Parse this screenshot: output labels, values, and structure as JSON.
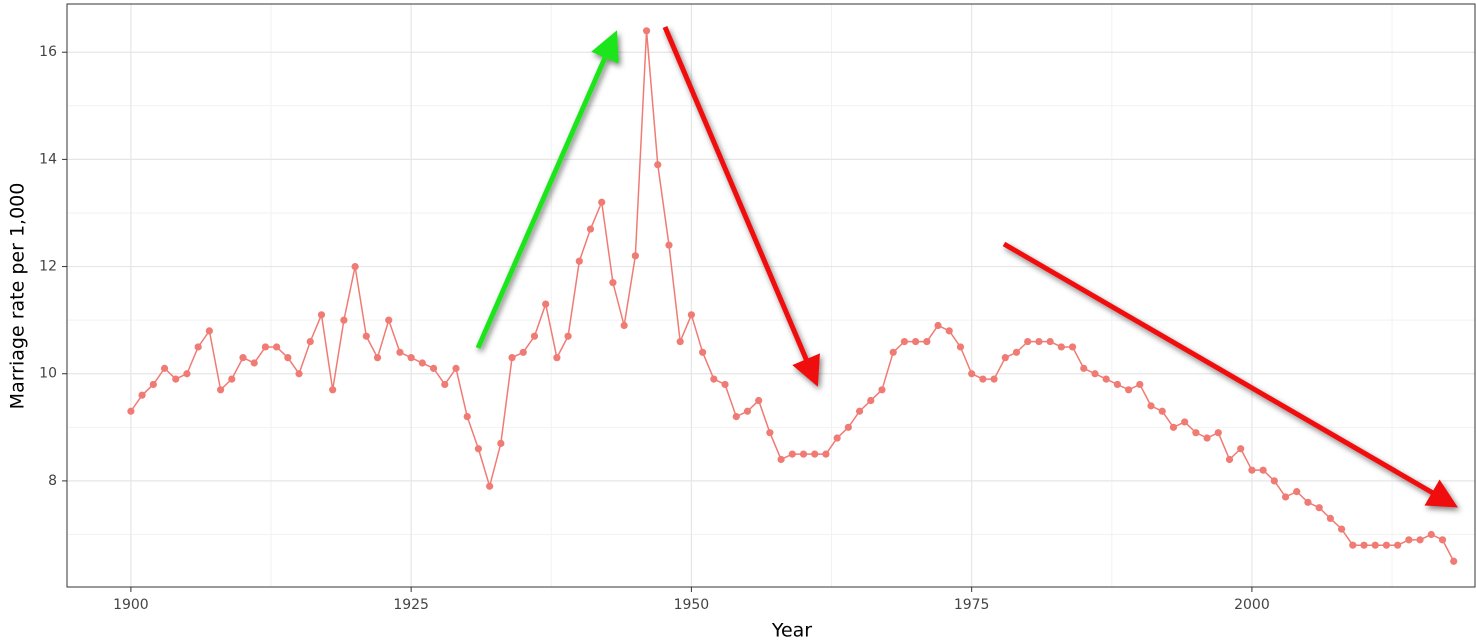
{
  "chart_data": {
    "type": "line",
    "x_label": "Year",
    "y_label": "Marriage rate per 1,000",
    "x": [
      1900,
      1901,
      1902,
      1903,
      1904,
      1905,
      1906,
      1907,
      1908,
      1909,
      1910,
      1911,
      1912,
      1913,
      1914,
      1915,
      1916,
      1917,
      1918,
      1919,
      1920,
      1921,
      1922,
      1923,
      1924,
      1925,
      1926,
      1927,
      1928,
      1929,
      1930,
      1931,
      1932,
      1933,
      1934,
      1935,
      1936,
      1937,
      1938,
      1939,
      1940,
      1941,
      1942,
      1943,
      1944,
      1945,
      1946,
      1947,
      1948,
      1949,
      1950,
      1951,
      1952,
      1953,
      1954,
      1955,
      1956,
      1957,
      1958,
      1959,
      1960,
      1961,
      1962,
      1963,
      1964,
      1965,
      1966,
      1967,
      1968,
      1969,
      1970,
      1971,
      1972,
      1973,
      1974,
      1975,
      1976,
      1977,
      1978,
      1979,
      1980,
      1981,
      1982,
      1983,
      1984,
      1985,
      1986,
      1987,
      1988,
      1989,
      1990,
      1991,
      1992,
      1993,
      1994,
      1995,
      1996,
      1997,
      1998,
      1999,
      2000,
      2001,
      2002,
      2003,
      2004,
      2005,
      2006,
      2007,
      2008,
      2009,
      2010,
      2011,
      2012,
      2013,
      2014,
      2015,
      2016,
      2017,
      2018
    ],
    "series": [
      {
        "color": "#f07b74",
        "values": [
          9.3,
          9.6,
          9.8,
          10.1,
          9.9,
          10.0,
          10.5,
          10.8,
          9.7,
          9.9,
          10.3,
          10.2,
          10.5,
          10.5,
          10.3,
          10.0,
          10.6,
          11.1,
          9.7,
          11.0,
          12.0,
          10.7,
          10.3,
          11.0,
          10.4,
          10.3,
          10.2,
          10.1,
          9.8,
          10.1,
          9.2,
          8.6,
          7.9,
          8.7,
          10.3,
          10.4,
          10.7,
          11.3,
          10.3,
          10.7,
          12.1,
          12.7,
          13.2,
          11.7,
          10.9,
          12.2,
          16.4,
          13.9,
          12.4,
          10.6,
          11.1,
          10.4,
          9.9,
          9.8,
          9.2,
          9.3,
          9.5,
          8.9,
          8.4,
          8.5,
          8.5,
          8.5,
          8.5,
          8.8,
          9.0,
          9.3,
          9.5,
          9.7,
          10.4,
          10.6,
          10.6,
          10.6,
          10.9,
          10.8,
          10.5,
          10.0,
          9.9,
          9.9,
          10.3,
          10.4,
          10.6,
          10.6,
          10.6,
          10.5,
          10.5,
          10.1,
          10.0,
          9.9,
          9.8,
          9.7,
          9.8,
          9.4,
          9.3,
          9.0,
          9.1,
          8.9,
          8.8,
          8.9,
          8.4,
          8.6,
          8.2,
          8.2,
          8.0,
          7.7,
          7.8,
          7.6,
          7.5,
          7.3,
          7.1,
          6.8,
          6.8,
          6.8,
          6.8,
          6.8,
          6.9,
          6.9,
          7.0,
          6.9,
          6.5
        ]
      }
    ],
    "xlim": [
      1894.3,
      2019.9
    ],
    "ylim": [
      6.02,
      16.9
    ],
    "xticks": [
      1900,
      1925,
      1950,
      1975,
      2000
    ],
    "yticks": [
      8,
      10,
      12,
      14,
      16
    ],
    "grid": true
  }
}
